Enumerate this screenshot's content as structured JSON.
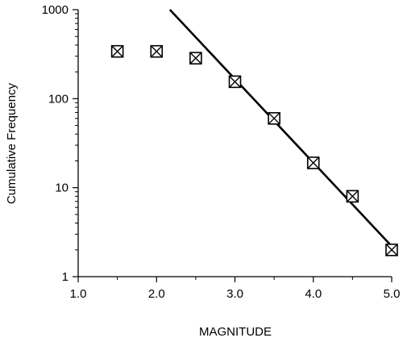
{
  "chart_data": {
    "type": "scatter",
    "title": "",
    "xlabel": "MAGNITUDE",
    "ylabel": "Cumulative Frequency",
    "x_scale": "linear",
    "y_scale": "log",
    "xlim": [
      1.0,
      5.0
    ],
    "ylim": [
      1,
      1000
    ],
    "x_ticks": [
      1.0,
      2.0,
      3.0,
      4.0,
      5.0
    ],
    "x_tick_labels": [
      "1.0",
      "2.0",
      "3.0",
      "4.0",
      "5.0"
    ],
    "y_ticks": [
      1,
      10,
      100,
      1000
    ],
    "y_tick_labels": [
      "1",
      "10",
      "100",
      "1000"
    ],
    "grid": false,
    "legend": "none",
    "marker": "crossed-square",
    "color": "#000000",
    "series": [
      {
        "x": [
          1.5,
          2.0,
          2.5,
          3.0,
          3.5,
          4.0,
          4.5,
          5.0
        ],
        "y": [
          340,
          340,
          285,
          155,
          60,
          19,
          8,
          2
        ]
      }
    ],
    "fit_line": {
      "x": [
        2.17,
        5.0
      ],
      "y": [
        1000,
        2.2
      ]
    }
  }
}
